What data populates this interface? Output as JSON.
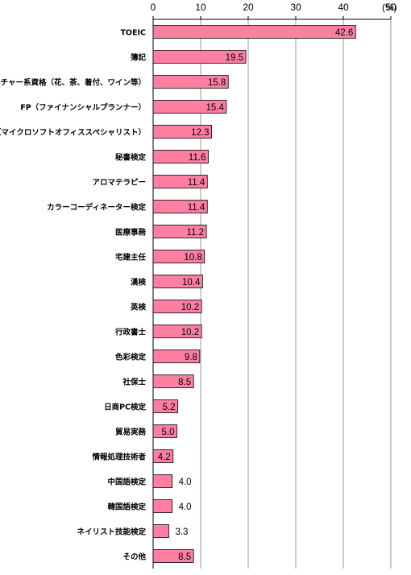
{
  "chart_data": {
    "type": "bar",
    "orientation": "horizontal",
    "unit": "(%)",
    "xlim": [
      0,
      50
    ],
    "xticks": [
      "0",
      "10",
      "20",
      "30",
      "40",
      "50"
    ],
    "grid": "vertical",
    "bar_color": "#FF7FA3",
    "categories": [
      "TOEIC",
      "簿記",
      "カルチャー系資格（花、茶、着付、ワイン等）",
      "FP（ファイナンシャルプランナー）",
      "MOS（マイクロソフトオフィススペシャリスト）",
      "秘書検定",
      "アロマテラピー",
      "カラーコーディネーター検定",
      "医療事務",
      "宅建主任",
      "漢検",
      "英検",
      "行政書士",
      "色彩検定",
      "社保士",
      "日商PC検定",
      "貿易実務",
      "情報処理技術者",
      "中国語検定",
      "韓国語検定",
      "ネイリスト技能検定",
      "その他"
    ],
    "values": [
      42.6,
      19.5,
      15.8,
      15.4,
      12.3,
      11.6,
      11.4,
      11.4,
      11.2,
      10.8,
      10.4,
      10.2,
      10.2,
      9.8,
      8.5,
      5.2,
      5.0,
      4.2,
      4.0,
      4.0,
      3.3,
      8.5
    ],
    "value_labels": [
      "42.6",
      "19.5",
      "15.8",
      "15.4",
      "12.3",
      "11.6",
      "11.4",
      "11.4",
      "11.2",
      "10.8",
      "10.4",
      "10.2",
      "10.2",
      "9.8",
      "8.5",
      "5.2",
      "5.0",
      "4.2",
      "4.0",
      "4.0",
      "3.3",
      "8.5"
    ]
  }
}
